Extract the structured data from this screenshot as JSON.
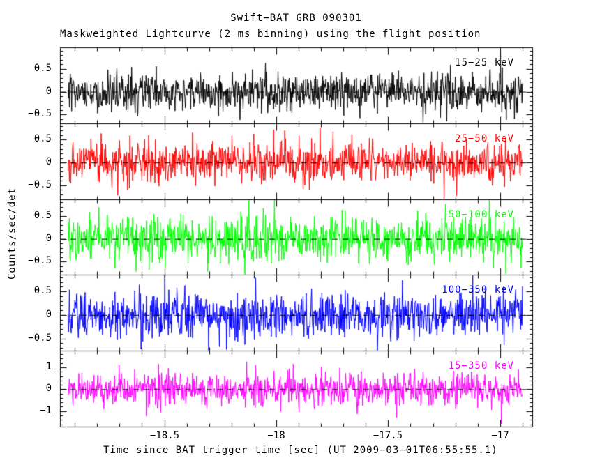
{
  "figure": {
    "title": "Swift−BAT GRB 090301",
    "subtitle": "Maskweighted Lightcurve (2 ms binning) using the flight position",
    "xlabel": "Time since BAT trigger time [sec] (UT 2009−03−01T06:55:55.1)",
    "ylabel": "Counts/sec/det",
    "background_color": "#ffffff",
    "frame_color": "#000000"
  },
  "chart_data": {
    "type": "line",
    "description": "Five vertically stacked Swift-BAT mask-weighted lightcurve panels of 2 ms binned zero-mean noise in different energy bands; individual bin values are unresolvable noise characterized by sigma.",
    "grid": false,
    "zero_line": {
      "style": "dashed",
      "color": "#000000",
      "dash": [
        8,
        7
      ]
    },
    "x": {
      "label": "Time since BAT trigger time [sec]",
      "lim": [
        -18.966,
        -16.856
      ],
      "major_ticks": [
        -18.5,
        -18.0,
        -17.5,
        -17.0
      ],
      "major_tick_labels": [
        "−18.5",
        "−18",
        "−17.5",
        "−17"
      ],
      "minor_step": 0.1,
      "data_start": -18.93,
      "data_end": -16.9,
      "bin_sec": 0.002
    },
    "panels": [
      {
        "label": "15−25 keV",
        "color": "#000000",
        "ylim": [
          -0.69,
          0.97
        ],
        "yticks": [
          0.5,
          0,
          -0.5
        ],
        "ytick_labels": [
          "0.5",
          "0",
          "−0.5"
        ],
        "y_minor_step": 0.1,
        "noise_sigma": 0.2,
        "spike_prob": 0.03,
        "spike_gain": 1.9,
        "seed": 101
      },
      {
        "label": "25−50 keV",
        "color": "#ff0000",
        "ylim": [
          -0.8,
          0.86
        ],
        "yticks": [
          0.5,
          0,
          -0.5
        ],
        "ytick_labels": [
          "0.5",
          "0",
          "−0.5"
        ],
        "y_minor_step": 0.1,
        "noise_sigma": 0.22,
        "spike_prob": 0.03,
        "spike_gain": 1.8,
        "seed": 102
      },
      {
        "label": "50−100 keV",
        "color": "#00ff00",
        "ylim": [
          -0.79,
          0.87
        ],
        "yticks": [
          0.5,
          0,
          -0.5
        ],
        "ytick_labels": [
          "0.5",
          "0",
          "−0.5"
        ],
        "y_minor_step": 0.1,
        "noise_sigma": 0.24,
        "spike_prob": 0.03,
        "spike_gain": 1.7,
        "seed": 103
      },
      {
        "label": "100−350 keV",
        "color": "#0000ff",
        "ylim": [
          -0.76,
          0.85
        ],
        "yticks": [
          0.5,
          0,
          -0.5
        ],
        "ytick_labels": [
          "0.5",
          "0",
          "−0.5"
        ],
        "y_minor_step": 0.1,
        "noise_sigma": 0.23,
        "spike_prob": 0.03,
        "spike_gain": 1.8,
        "seed": 104
      },
      {
        "label": "15−350 keV",
        "color": "#ff00ff",
        "ylim": [
          -1.71,
          1.76
        ],
        "yticks": [
          1,
          0,
          -1
        ],
        "ytick_labels": [
          "1",
          "0",
          "−1"
        ],
        "y_minor_step": 0.2,
        "noise_sigma": 0.37,
        "spike_prob": 0.035,
        "spike_gain": 1.9,
        "seed": 105
      }
    ]
  }
}
